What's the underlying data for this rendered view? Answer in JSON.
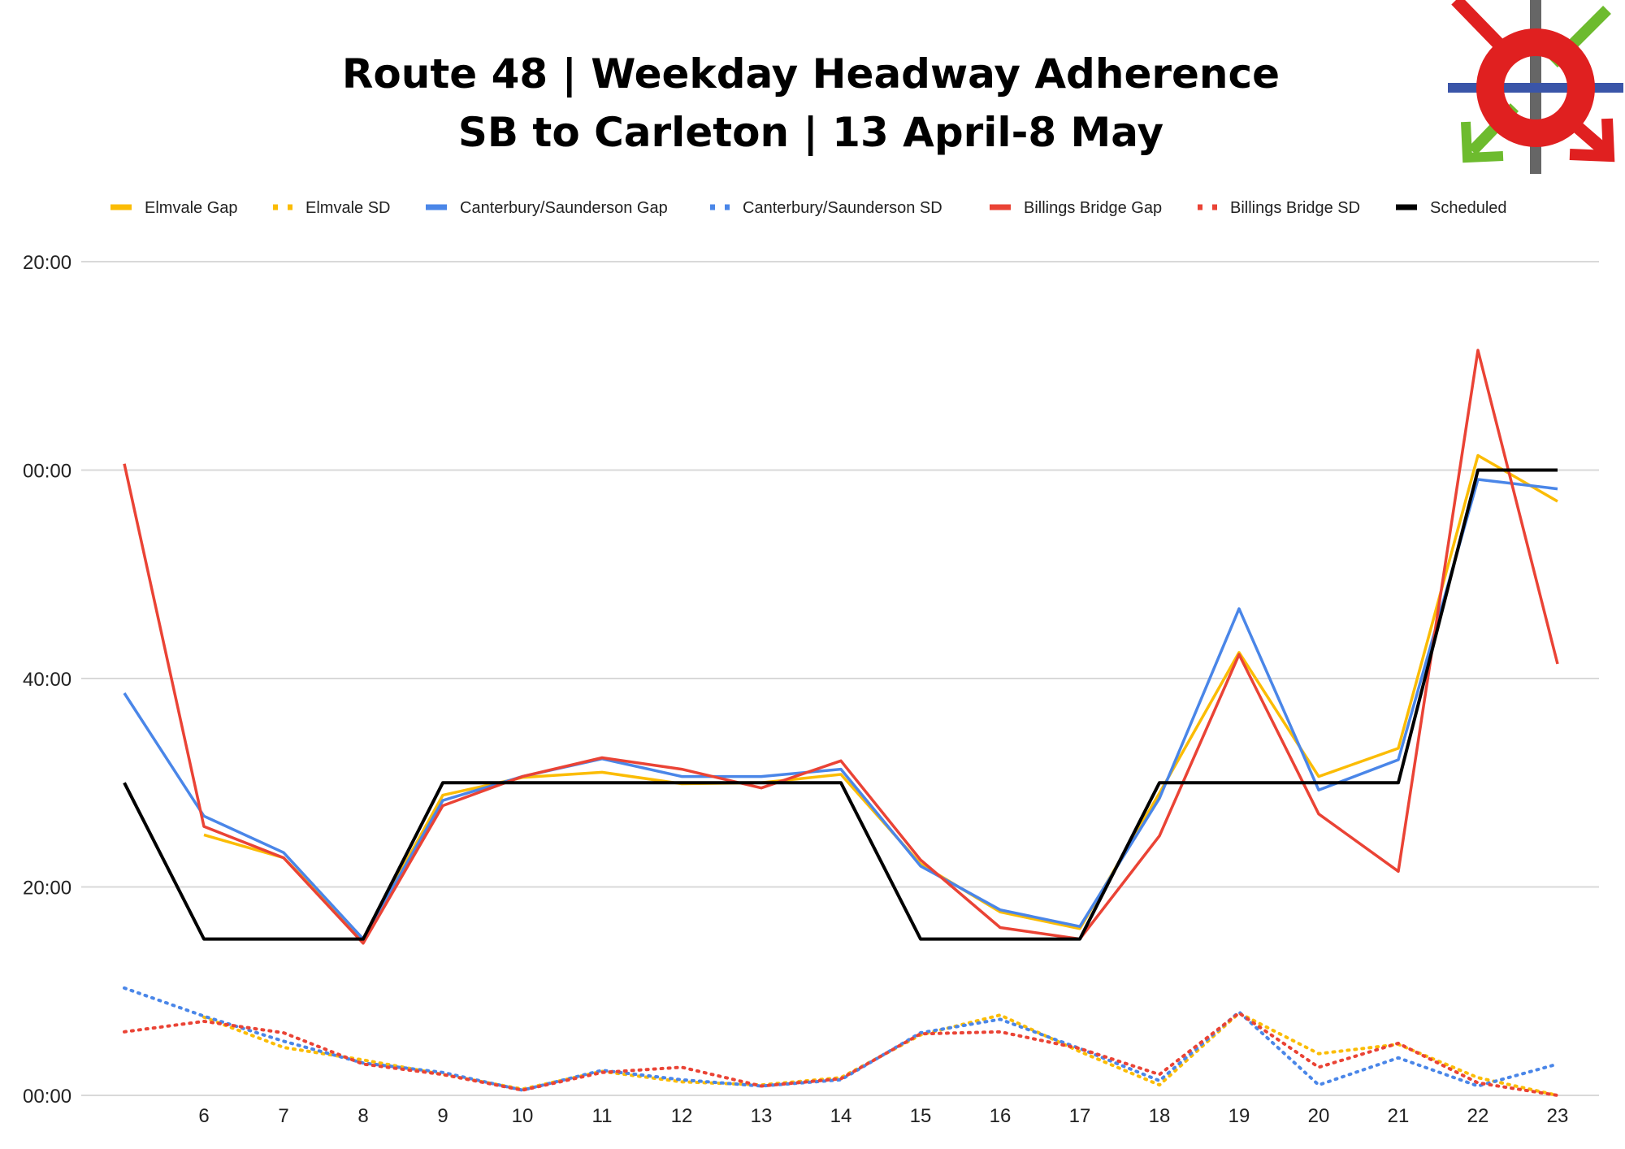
{
  "header": {
    "title_line1": "Route 48 | Weekday Headway Adherence",
    "title_line2": "SB to Carleton | 13 April-8 May"
  },
  "logo": {
    "icon": "transit-roundabout-logo",
    "colors": [
      "#e02020",
      "#3a55a8",
      "#6dbb2e",
      "#666666"
    ]
  },
  "chart_data": {
    "type": "line",
    "title": "Route 48 | Weekday Headway Adherence\nSB to Carleton | 13 April-8 May",
    "xlabel": "",
    "ylabel": "",
    "x": [
      5,
      6,
      7,
      8,
      9,
      10,
      11,
      12,
      13,
      14,
      15,
      16,
      17,
      18,
      19,
      20,
      21,
      22,
      23
    ],
    "x_tick_labels": [
      "6",
      "7",
      "8",
      "9",
      "10",
      "11",
      "12",
      "13",
      "14",
      "15",
      "16",
      "17",
      "18",
      "19",
      "20",
      "21",
      "22",
      "23"
    ],
    "x_tick_values": [
      6,
      7,
      8,
      9,
      10,
      11,
      12,
      13,
      14,
      15,
      16,
      17,
      18,
      19,
      20,
      21,
      22,
      23
    ],
    "ylim": [
      0,
      80
    ],
    "y_ticks": [
      0,
      20,
      40,
      60,
      80
    ],
    "y_tick_labels": [
      "00:00",
      "20:00",
      "40:00",
      "00:00",
      "20:00"
    ],
    "grid": true,
    "legend_position": "top",
    "series": [
      {
        "name": "Elmvale Gap",
        "color": "#fbbc04",
        "dash": false,
        "values": [
          null,
          25.0,
          22.8,
          15.0,
          28.8,
          30.5,
          31.0,
          29.9,
          30.0,
          30.8,
          22.2,
          17.6,
          16.0,
          29.0,
          42.5,
          30.6,
          33.3,
          61.4,
          57.0
        ]
      },
      {
        "name": "Elmvale SD",
        "color": "#fbbc04",
        "dash": true,
        "values": [
          null,
          7.5,
          4.6,
          3.4,
          2.0,
          0.6,
          2.3,
          1.3,
          1.0,
          1.7,
          5.8,
          7.7,
          4.2,
          1.0,
          7.9,
          4.0,
          4.9,
          1.7,
          0.0
        ]
      },
      {
        "name": "Canterbury/Saunderson Gap",
        "color": "#4a86e8",
        "dash": false,
        "values": [
          38.6,
          26.8,
          23.3,
          15.0,
          28.3,
          30.6,
          32.3,
          30.6,
          30.6,
          31.3,
          22.0,
          17.8,
          16.2,
          28.5,
          46.7,
          29.3,
          32.2,
          59.1,
          58.2
        ]
      },
      {
        "name": "Canterbury/Saunderson SD",
        "color": "#4a86e8",
        "dash": true,
        "values": [
          10.3,
          7.6,
          5.2,
          3.1,
          2.2,
          0.5,
          2.4,
          1.5,
          0.9,
          1.5,
          6.0,
          7.3,
          4.5,
          1.4,
          8.0,
          1.0,
          3.6,
          0.9,
          3.0
        ]
      },
      {
        "name": "Billings Bridge Gap",
        "color": "#ea4335",
        "dash": false,
        "values": [
          60.6,
          25.8,
          22.8,
          14.6,
          27.8,
          30.6,
          32.4,
          31.3,
          29.5,
          32.1,
          22.6,
          16.1,
          15.0,
          24.9,
          42.3,
          27.0,
          21.5,
          71.5,
          41.4
        ]
      },
      {
        "name": "Billings Bridge SD",
        "color": "#ea4335",
        "dash": true,
        "values": [
          6.1,
          7.1,
          6.0,
          3.0,
          2.0,
          0.5,
          2.2,
          2.7,
          0.9,
          1.6,
          5.9,
          6.1,
          4.5,
          2.0,
          7.9,
          2.7,
          5.0,
          1.2,
          0.0
        ]
      },
      {
        "name": "Scheduled",
        "color": "#000000",
        "dash": false,
        "values": [
          30,
          15,
          15,
          15,
          30,
          30,
          30,
          30,
          30,
          30,
          15,
          15,
          15,
          30,
          30,
          30,
          30,
          60,
          60
        ]
      }
    ]
  }
}
